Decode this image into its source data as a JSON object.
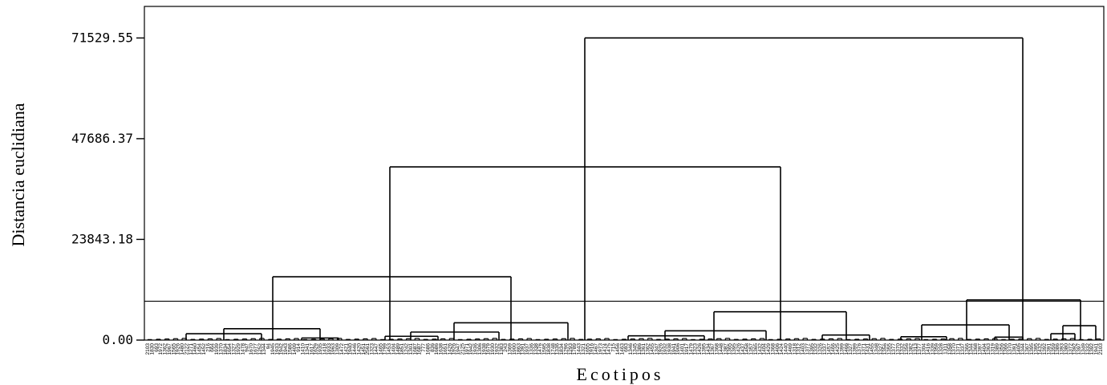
{
  "chart_data": {
    "type": "dendrogram",
    "xlabel": "Ecotipos",
    "ylabel": "Distancia euclidiana",
    "yticks": [
      "0.00",
      "23843.18",
      "47686.37",
      "71529.55"
    ],
    "ytick_values": [
      0,
      23843.18,
      47686.37,
      71529.55
    ],
    "ylim": [
      0,
      79000
    ],
    "cutoff_line": 9200,
    "n_leaves": 222,
    "leaves": [
      "2103",
      "1830",
      "693",
      "1972",
      "1362",
      "1967",
      "1565",
      "1926",
      "1480",
      "2122",
      "1271",
      "1460",
      "1454",
      "1452",
      "216",
      "664",
      "1939",
      "1370",
      "1834",
      "1654",
      "1327",
      "1929",
      "1478",
      "947",
      "1670",
      "1677",
      "1252",
      "1344",
      "94",
      "1945",
      "1933",
      "1942",
      "1943",
      "1586",
      "1409",
      "914",
      "1410",
      "1341",
      "1617",
      "1629",
      "1935",
      "1418",
      "1933",
      "1963",
      "1309",
      "1472",
      "1421",
      "1940",
      "1446",
      "1420",
      "1451",
      "2561",
      "1323",
      "1447",
      "1465",
      "1799",
      "1453",
      "1404",
      "1489",
      "1851",
      "1242",
      "1301",
      "1687",
      "1687",
      "777",
      "1686",
      "836",
      "1686",
      "1638",
      "1651",
      "1426",
      "1926",
      "1947",
      "2125",
      "1971",
      "1942",
      "1936",
      "1306",
      "1938",
      "1679",
      "1930",
      "1932",
      "1383",
      "243",
      "1369",
      "1900",
      "1863",
      "1391",
      "1937",
      "1336",
      "1338",
      "1476",
      "1595",
      "1838",
      "1748",
      "1336",
      "1834",
      "1296",
      "1293",
      "1789",
      "1443",
      "1321",
      "1655",
      "1916",
      "1467",
      "1973",
      "1474",
      "1475",
      "715",
      "1456",
      "1463",
      "693",
      "1346",
      "1345",
      "1386",
      "1361",
      "1362",
      "1455",
      "1347",
      "1926",
      "1932",
      "1938",
      "1941",
      "1906",
      "1401",
      "1917",
      "1479",
      "1323",
      "1426",
      "1395",
      "1434",
      "1367",
      "1368",
      "1448",
      "1387",
      "1365",
      "1395",
      "1426",
      "1437",
      "1458",
      "1357",
      "1365",
      "1432",
      "1404",
      "1429",
      "1368",
      "1406",
      "1424",
      "1440",
      "1469",
      "1318",
      "1312",
      "1403",
      "1377",
      "1395",
      "1332",
      "1326",
      "1337",
      "1457",
      "1466",
      "1425",
      "1399",
      "1466",
      "1327",
      "1399",
      "1376",
      "1371",
      "1431",
      "1455",
      "1348",
      "1327",
      "1356",
      "1355",
      "1377",
      "1370",
      "1332",
      "1356",
      "1382",
      "1313",
      "1377",
      "1304",
      "1416",
      "1339",
      "1359",
      "1328",
      "1311",
      "1358",
      "1370",
      "1371",
      "1337",
      "1366",
      "1344",
      "1368",
      "1397",
      "1404",
      "1363",
      "1319",
      "1389",
      "1356",
      "1366",
      "1370",
      "1391",
      "1405",
      "1344",
      "1367",
      "1395",
      "1395",
      "1432",
      "1392",
      "1391",
      "1359",
      "1386",
      "1393",
      "1380",
      "1372",
      "1392",
      "1397",
      "1349",
      "1332",
      "1392",
      "1941"
    ],
    "merges": [
      {
        "x1": 486,
        "x2": 973,
        "h": 41000,
        "parent_x": 729
      },
      {
        "x1": 729,
        "x2": 1275,
        "h": 71529.55
      },
      {
        "x1": 340,
        "x2": 637,
        "h": 15000,
        "parent_x": 486
      },
      {
        "x1": 890,
        "x2": 1055,
        "h": 6700,
        "parent_x": 973
      },
      {
        "x1": 1205,
        "x2": 1347,
        "h": 9500,
        "parent_x": 1275
      },
      {
        "x1": 279,
        "x2": 399,
        "h": 2700,
        "parent_x": 340
      },
      {
        "x1": 566,
        "x2": 708,
        "h": 4100,
        "parent_x": 637
      },
      {
        "x1": 829,
        "x2": 955,
        "h": 2200,
        "parent_x": 890
      },
      {
        "x1": 1149,
        "x2": 1258,
        "h": 3600,
        "parent_x": 1205
      },
      {
        "x1": 1325,
        "x2": 1366,
        "h": 3400,
        "parent_x": 1347
      },
      {
        "x1": 232,
        "x2": 326,
        "h": 1500,
        "parent_x": 279
      },
      {
        "x1": 512,
        "x2": 622,
        "h": 1900,
        "parent_x": 566
      },
      {
        "x1": 783,
        "x2": 878,
        "h": 1000,
        "parent_x": 829
      },
      {
        "x1": 1025,
        "x2": 1084,
        "h": 1200,
        "parent_x": 1055
      },
      {
        "x1": 1123,
        "x2": 1180,
        "h": 800,
        "parent_x": 1149
      },
      {
        "x1": 480,
        "x2": 546,
        "h": 900,
        "parent_x": 512
      },
      {
        "x1": 1310,
        "x2": 1340,
        "h": 1500,
        "parent_x": 1325
      },
      {
        "x1": 376,
        "x2": 422,
        "h": 500,
        "parent_x": 399
      },
      {
        "x1": 1240,
        "x2": 1275,
        "h": 700,
        "parent_x": 1258
      }
    ]
  }
}
